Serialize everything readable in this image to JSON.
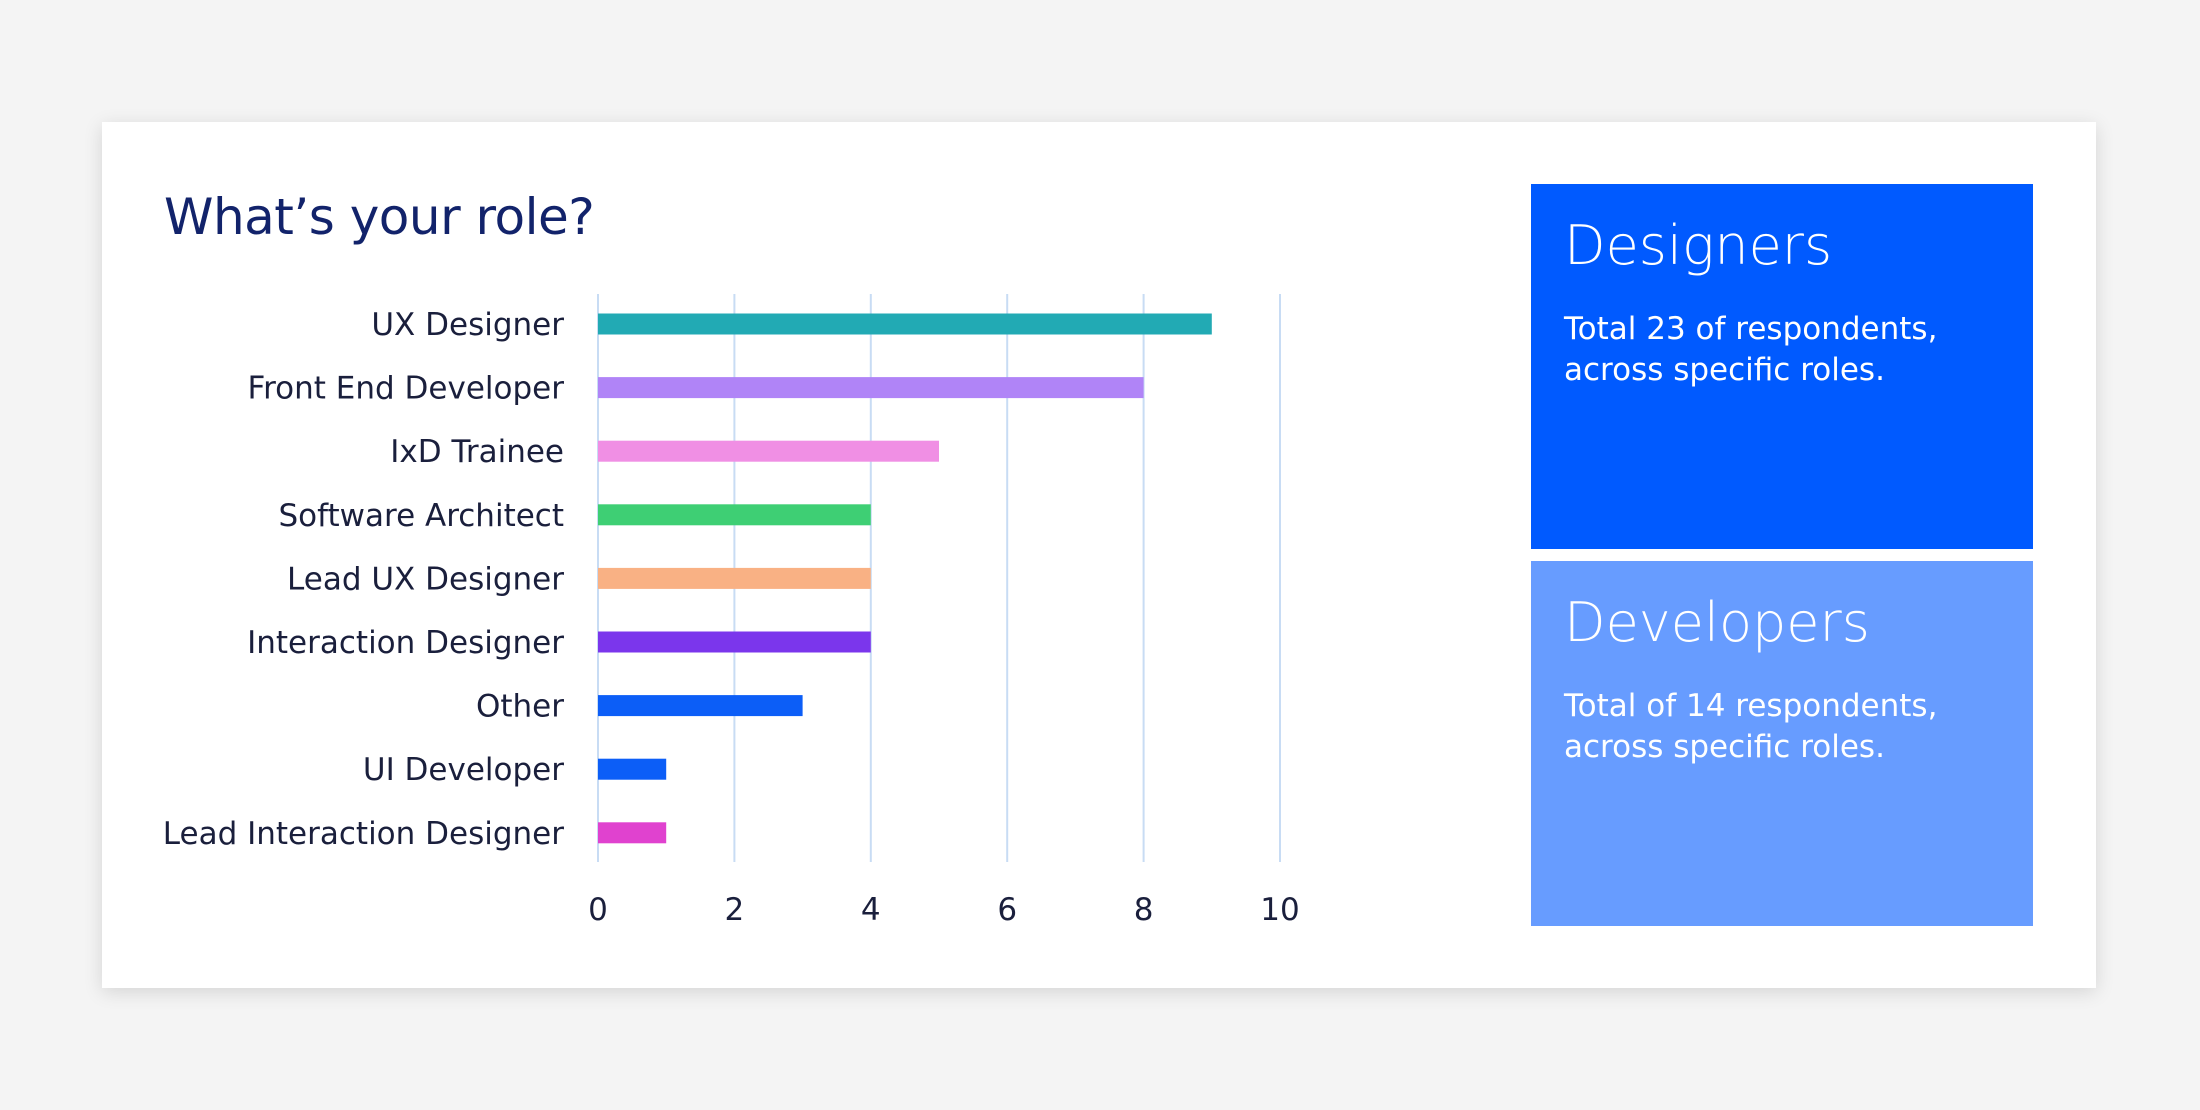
{
  "chart_data": {
    "type": "bar",
    "orientation": "horizontal",
    "title": "What’s your role?",
    "categories": [
      "UX Designer",
      "Front End Developer",
      "IxD Trainee",
      "Software Architect",
      "Lead UX Designer",
      "Interaction Designer",
      "Other",
      "UI Developer",
      "Lead Interaction Designer"
    ],
    "values": [
      9,
      8,
      5,
      4,
      4,
      4,
      3,
      1,
      1
    ],
    "colors": [
      "#22aab4",
      "#b084f7",
      "#f08fe4",
      "#3ecf74",
      "#f9b184",
      "#7b36ec",
      "#0c5ef7",
      "#0c5ef7",
      "#e042cf"
    ],
    "xlim": [
      0,
      10
    ],
    "xticks": [
      0,
      2,
      4,
      6,
      8,
      10
    ],
    "grid": true,
    "grid_color": "#c8dcf4"
  },
  "panels": {
    "designers": {
      "title": "Designers",
      "text": "Total 23 of respondents, across specific roles.",
      "color": "#005aff"
    },
    "developers": {
      "title": "Developers",
      "text": "Total of 14 respondents, across specific roles.",
      "color": "#679cff"
    }
  }
}
